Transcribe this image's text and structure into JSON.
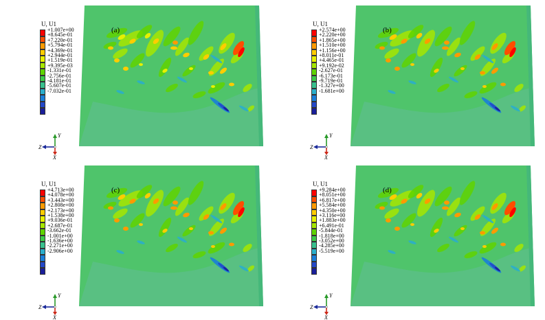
{
  "legend_title": "U, U1",
  "colors": [
    "#ff0000",
    "#ff4d00",
    "#ff9a00",
    "#ffcd00",
    "#e8f000",
    "#a6e600",
    "#5fd400",
    "#3ccb4a",
    "#38c08d",
    "#2aaecb",
    "#1a7ed9",
    "#2448c8",
    "#1a1f9a"
  ],
  "axis_labels": {
    "y": "Y",
    "z": "Z",
    "x": "X"
  },
  "panels": [
    {
      "label": "(a)",
      "values": [
        "+1.007e+00",
        "+8.645e-01",
        "+7.220e-01",
        "+5.794e-01",
        "+4.369e-01",
        "+2.944e-01",
        "+1.519e-01",
        "+9.395e-03",
        "-1.331e-01",
        "-2.756e-01",
        "-4.181e-01",
        "-5.607e-01",
        "-7.032e-01"
      ]
    },
    {
      "label": "(b)",
      "values": [
        "+2.574e+00",
        "+2.220e+00",
        "+1.865e+00",
        "+1.510e+00",
        "+1.156e+00",
        "+8.011e-01",
        "+4.465e-01",
        "+9.192e-02",
        "-2.627e-01",
        "-6.173e-01",
        "-9.719e-01",
        "-1.327e+00",
        "-1.681e+00"
      ]
    },
    {
      "label": "(c)",
      "values": [
        "+4.713e+00",
        "+4.078e+00",
        "+3.443e+00",
        "+2.808e+00",
        "+2.173e+00",
        "+1.538e+00",
        "+9.036e-01",
        "+2.687e-01",
        "-3.662e-01",
        "-1.001e+00",
        "-1.636e+00",
        "-2.271e+00",
        "-2.906e+00"
      ]
    },
    {
      "label": "(d)",
      "values": [
        "+9.284e+00",
        "+8.051e+00",
        "+6.817e+00",
        "+5.584e+00",
        "+4.350e+00",
        "+3.116e+00",
        "+1.883e+00",
        "+6.491e-01",
        "-5.844e-01",
        "-1.818e+00",
        "-3.052e+00",
        "-4.285e+00",
        "-5.519e+00"
      ]
    }
  ]
}
